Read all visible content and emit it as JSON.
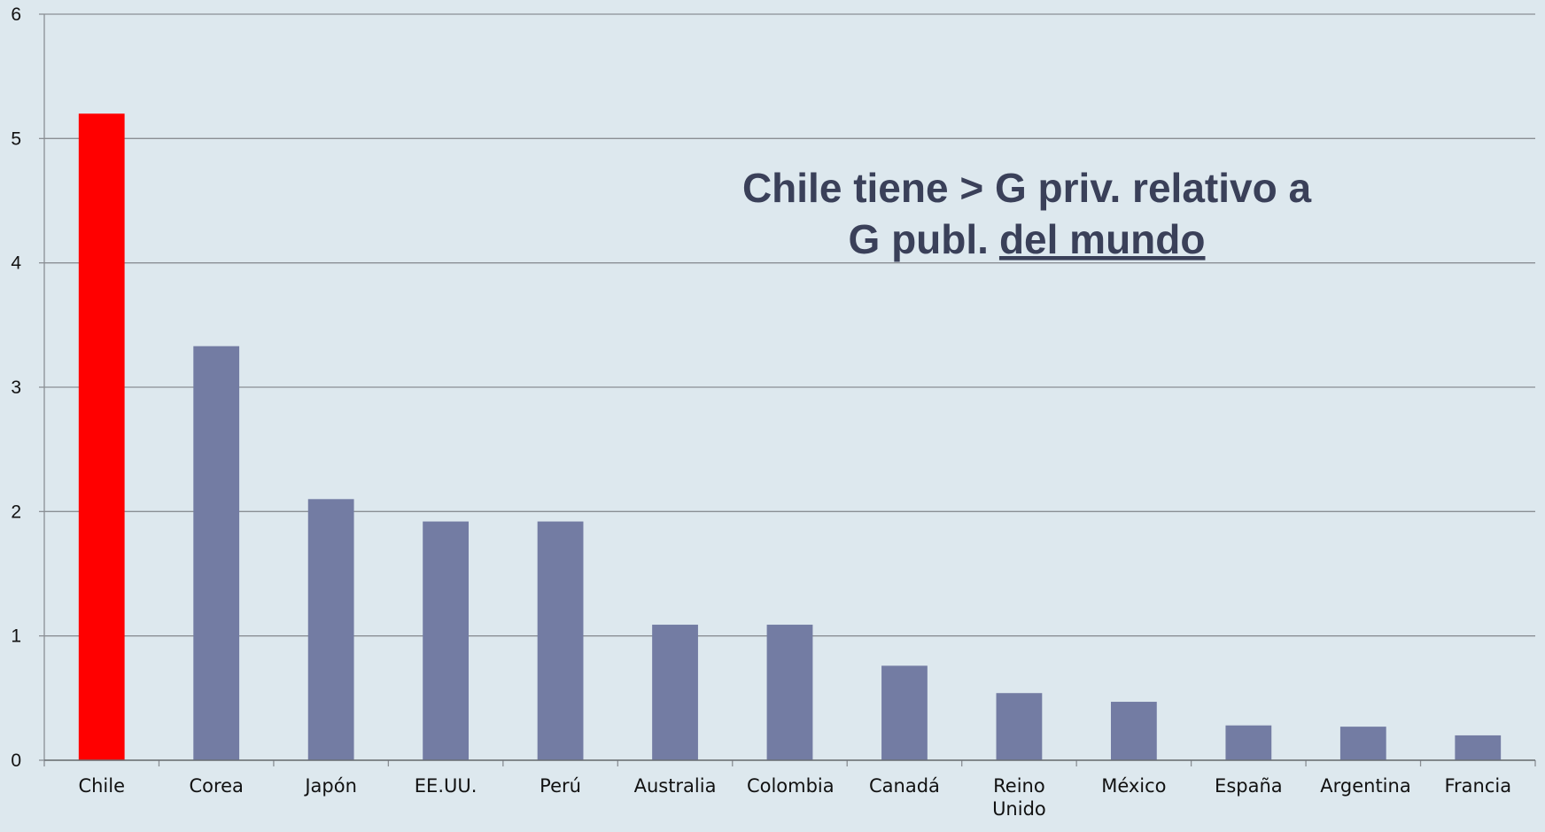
{
  "chart_data": {
    "type": "bar",
    "categories": [
      "Chile",
      "Corea",
      "Japón",
      "EE.UU.",
      "Perú",
      "Australia",
      "Colombia",
      "Canadá",
      "Reino Unido",
      "México",
      "España",
      "Argentina",
      "Francia"
    ],
    "values": [
      5.2,
      3.33,
      2.1,
      1.92,
      1.92,
      1.09,
      1.09,
      0.76,
      0.54,
      0.47,
      0.28,
      0.27,
      0.2
    ],
    "colors": [
      "#ff0000",
      "#737ca3",
      "#737ca3",
      "#737ca3",
      "#737ca3",
      "#737ca3",
      "#737ca3",
      "#737ca3",
      "#737ca3",
      "#737ca3",
      "#737ca3",
      "#737ca3",
      "#737ca3"
    ],
    "ylim": [
      0,
      6
    ],
    "yticks": [
      0,
      1,
      2,
      3,
      4,
      5,
      6
    ],
    "grid": true,
    "annotation": {
      "line1": "Chile tiene > G priv. relativo a",
      "line2": "G publ.",
      "line2_underlined": "del mundo"
    }
  }
}
